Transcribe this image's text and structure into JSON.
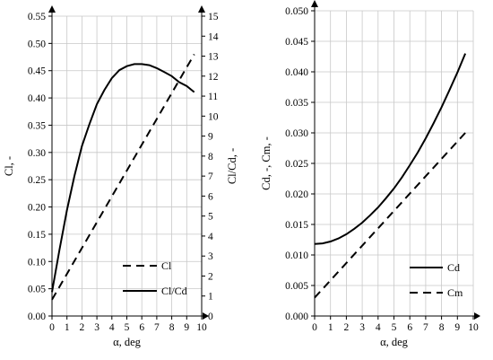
{
  "chart_data": [
    {
      "type": "line",
      "xlabel": "α, deg",
      "ylabel": "Cl, -",
      "y2label": "Cl/Cd, -",
      "xlim": [
        0,
        10
      ],
      "ylim": [
        0,
        0.55
      ],
      "y2lim": [
        0,
        15
      ],
      "xticks": [
        "0",
        "1",
        "2",
        "3",
        "4",
        "5",
        "6",
        "7",
        "8",
        "9",
        "10"
      ],
      "yticks": [
        "0.00",
        "0.05",
        "0.10",
        "0.15",
        "0.20",
        "0.25",
        "0.30",
        "0.35",
        "0.40",
        "0.45",
        "0.50",
        "0.55"
      ],
      "y2ticks": [
        "0",
        "1",
        "2",
        "3",
        "4",
        "5",
        "6",
        "7",
        "8",
        "9",
        "10",
        "11",
        "12",
        "13",
        "14",
        "15"
      ],
      "grid": true,
      "legend_position": "bottom-right",
      "series": [
        {
          "name": "Cl",
          "axis": "left",
          "style": "dashed",
          "x": [
            0,
            9.5
          ],
          "y": [
            0.03,
            0.48
          ]
        },
        {
          "name": "Cl/Cd",
          "axis": "right",
          "style": "solid",
          "x": [
            0,
            0.5,
            1,
            1.5,
            2,
            2.5,
            3,
            3.5,
            4,
            4.5,
            5,
            5.5,
            6,
            6.5,
            7,
            7.5,
            8,
            8.5,
            9,
            9.5
          ],
          "y": [
            1.2,
            3.3,
            5.3,
            7.0,
            8.5,
            9.6,
            10.6,
            11.3,
            11.9,
            12.3,
            12.5,
            12.6,
            12.6,
            12.55,
            12.4,
            12.2,
            12.0,
            11.7,
            11.5,
            11.2
          ]
        }
      ]
    },
    {
      "type": "line",
      "xlabel": "α, deg",
      "ylabel": "Cd, -, Cm, -",
      "xlim": [
        0,
        10
      ],
      "ylim": [
        0,
        0.05
      ],
      "xticks": [
        "0",
        "1",
        "2",
        "3",
        "4",
        "5",
        "6",
        "7",
        "8",
        "9",
        "10"
      ],
      "yticks": [
        "0.000",
        "0.005",
        "0.010",
        "0.015",
        "0.020",
        "0.025",
        "0.030",
        "0.035",
        "0.040",
        "0.045",
        "0.050"
      ],
      "grid": true,
      "legend_position": "bottom-right",
      "series": [
        {
          "name": "Cd",
          "style": "solid",
          "x": [
            0,
            0.5,
            1,
            1.5,
            2,
            2.5,
            3,
            3.5,
            4,
            4.5,
            5,
            5.5,
            6,
            6.5,
            7,
            7.5,
            8,
            8.5,
            9,
            9.5
          ],
          "y": [
            0.0118,
            0.0119,
            0.0122,
            0.0127,
            0.0134,
            0.0143,
            0.0153,
            0.0165,
            0.0178,
            0.0193,
            0.0209,
            0.0227,
            0.0247,
            0.0268,
            0.0291,
            0.0316,
            0.0342,
            0.037,
            0.0399,
            0.043
          ]
        },
        {
          "name": "Cm",
          "style": "dashed",
          "x": [
            0,
            9.5
          ],
          "y": [
            0.003,
            0.03
          ]
        }
      ]
    }
  ]
}
